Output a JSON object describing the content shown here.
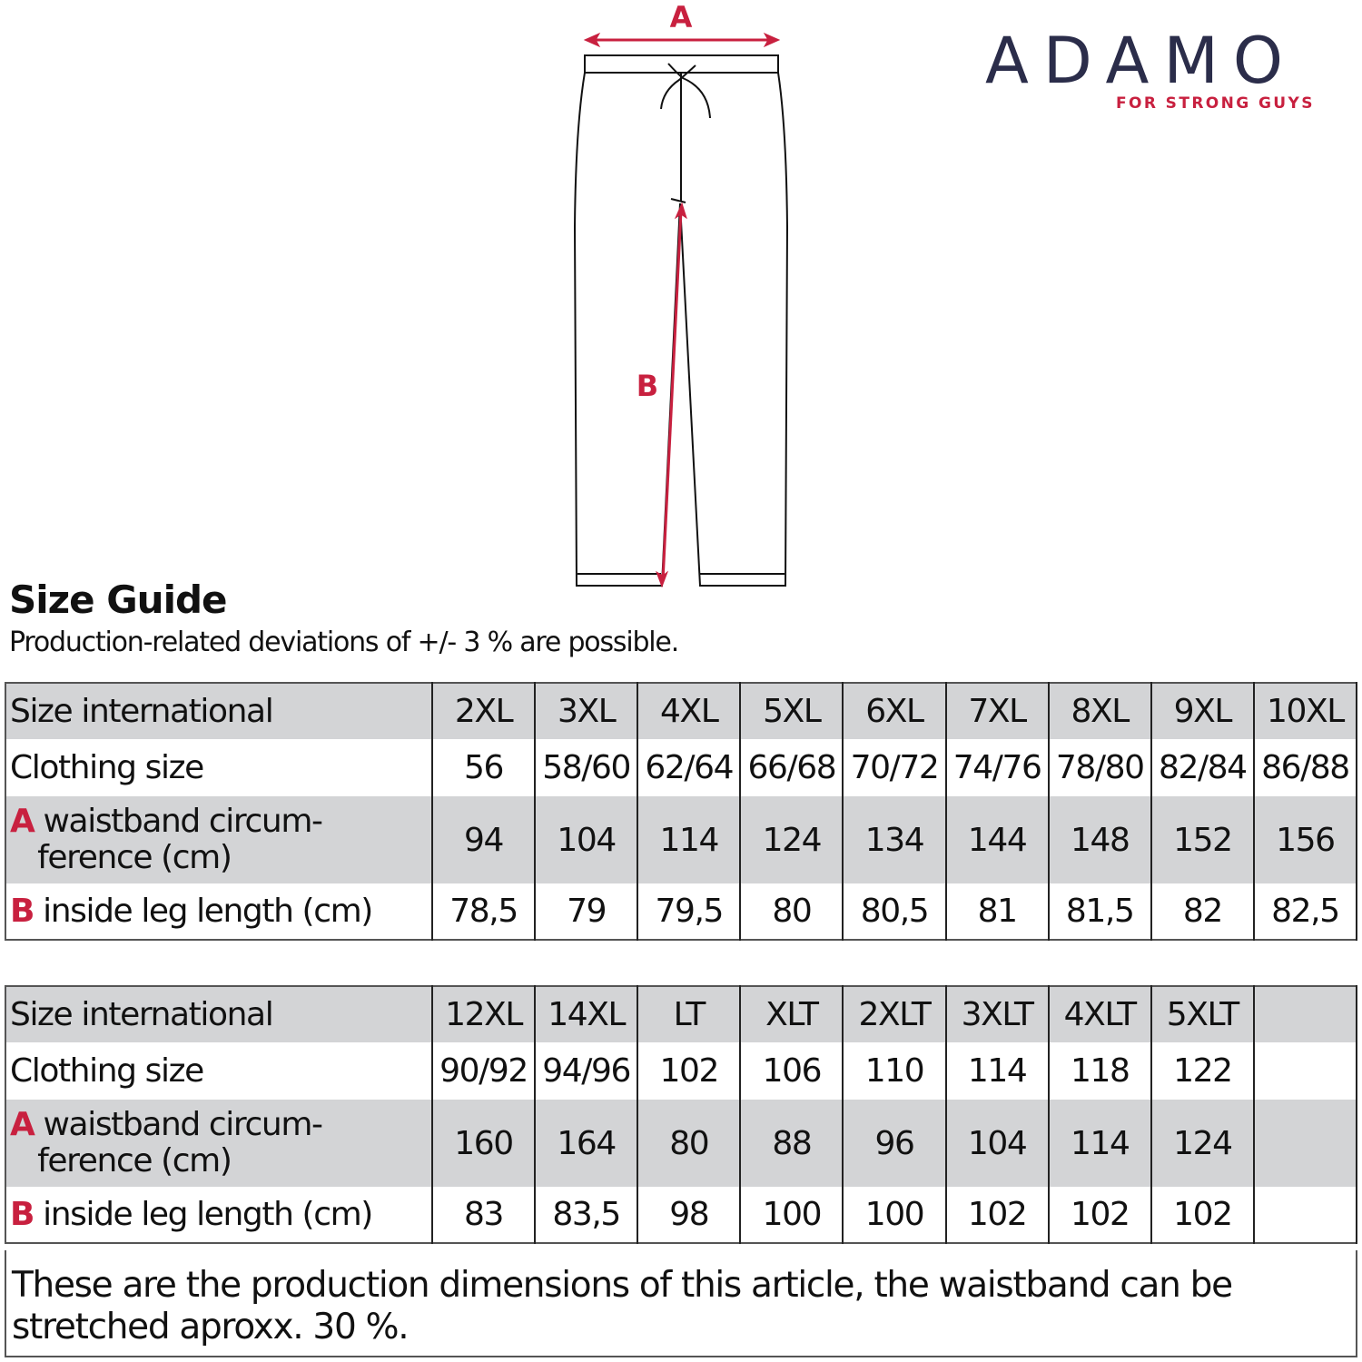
{
  "drawing": {
    "label_a": "A",
    "label_b": "B",
    "accent": "#c8203f"
  },
  "logo": {
    "brand": "ADAMO",
    "tagline": "FOR STRONG GUYS",
    "brand_color": "#2b2d4a"
  },
  "title": "Size Guide",
  "subtitle": "Production-related deviations of +/- 3 % are possible.",
  "row_labels": {
    "size_international": "Size international",
    "clothing_size": "Clothing size",
    "a_letter": "A",
    "a_line1": "waistband circum-",
    "a_line2": "ference (cm)",
    "b_letter": "B",
    "b_label": "inside leg length (cm)"
  },
  "tables": [
    {
      "sizes": [
        "2XL",
        "3XL",
        "4XL",
        "5XL",
        "6XL",
        "7XL",
        "8XL",
        "9XL",
        "10XL"
      ],
      "clothing": [
        "56",
        "58/60",
        "62/64",
        "66/68",
        "70/72",
        "74/76",
        "78/80",
        "82/84",
        "86/88"
      ],
      "waist": [
        "94",
        "104",
        "114",
        "124",
        "134",
        "144",
        "148",
        "152",
        "156"
      ],
      "leg": [
        "78,5",
        "79",
        "79,5",
        "80",
        "80,5",
        "81",
        "81,5",
        "82",
        "82,5"
      ]
    },
    {
      "sizes": [
        "12XL",
        "14XL",
        "LT",
        "XLT",
        "2XLT",
        "3XLT",
        "4XLT",
        "5XLT",
        ""
      ],
      "clothing": [
        "90/92",
        "94/96",
        "102",
        "106",
        "110",
        "114",
        "118",
        "122",
        ""
      ],
      "waist": [
        "160",
        "164",
        "80",
        "88",
        "96",
        "104",
        "114",
        "124",
        ""
      ],
      "leg": [
        "83",
        "83,5",
        "98",
        "100",
        "100",
        "102",
        "102",
        "102",
        ""
      ]
    }
  ],
  "note": "These are the production dimensions of this article, the waistband can be stretched aproxx. 30 %."
}
